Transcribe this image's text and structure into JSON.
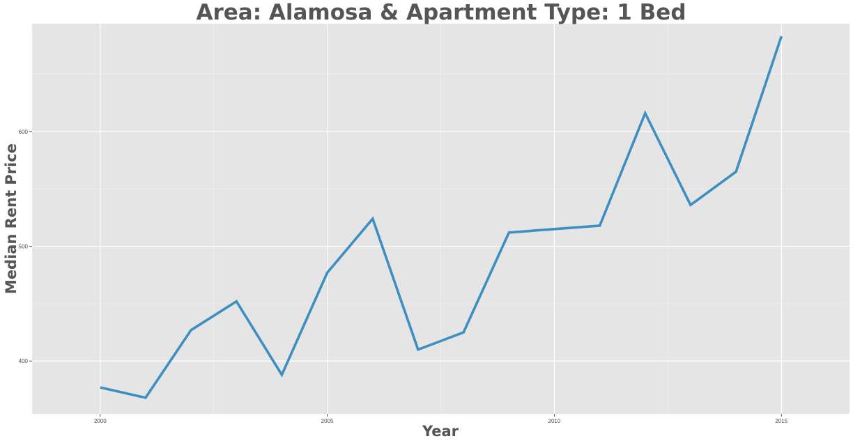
{
  "chart_data": {
    "type": "line",
    "title": "Area: Alamosa & Apartment Type: 1 Bed",
    "xlabel": "Year",
    "ylabel": "Median Rent Price",
    "xlim": [
      1998.5,
      2016.5
    ],
    "ylim": [
      354,
      694
    ],
    "x_ticks": [
      2000,
      2005,
      2010,
      2015
    ],
    "x_ticks_labels": [
      "2000",
      "2005",
      "2010",
      "2015"
    ],
    "y_ticks": [
      400,
      500,
      600
    ],
    "y_ticks_labels": [
      "400",
      "500",
      "600"
    ],
    "grid": true,
    "legend": "none",
    "series": [
      {
        "color": "#3c8fc0",
        "x": [
          2000,
          2001,
          2002,
          2003,
          2004,
          2005,
          2006,
          2007,
          2008,
          2009,
          2010,
          2011,
          2012,
          2013,
          2014,
          2015
        ],
        "values": [
          377,
          368,
          427,
          452,
          388,
          477,
          524,
          410,
          425,
          512,
          515,
          518,
          616,
          536,
          565,
          683
        ]
      }
    ],
    "colors": {
      "panel_background": "#e5e5e5",
      "grid_major": "#ffffff",
      "grid_minor": "#f2f2f2"
    }
  }
}
